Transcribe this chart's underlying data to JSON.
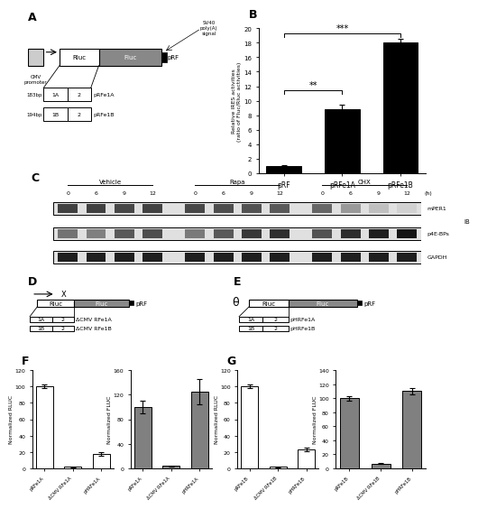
{
  "panel_B": {
    "categories": [
      "pRF",
      "pRFe1A",
      "pRFe1B"
    ],
    "values": [
      1.0,
      8.8,
      18.0
    ],
    "errors": [
      0.1,
      0.6,
      0.5
    ],
    "bar_color": "#000000",
    "ylabel": "Relative IRES activities\n(ratio of Fluc/Rluc activities)",
    "ylim": [
      0,
      20
    ],
    "yticks": [
      0,
      2,
      4,
      6,
      8,
      10,
      12,
      14,
      16,
      18,
      20
    ]
  },
  "panel_F_rluc": {
    "categories": [
      "pRFe1A",
      "ΔCMV RFe1A",
      "pHRFe1A"
    ],
    "values": [
      100,
      2,
      18
    ],
    "errors": [
      2,
      0.5,
      2
    ],
    "bar_colors": [
      "white",
      "white",
      "white"
    ],
    "ylabel": "Normalized RLUC",
    "ylim": [
      0,
      120
    ],
    "yticks": [
      0,
      20,
      40,
      60,
      80,
      100,
      120
    ]
  },
  "panel_F_fluc": {
    "categories": [
      "pRFe1A",
      "ΔCMV RFe1A",
      "pHRFe1A"
    ],
    "values": [
      100,
      4,
      125
    ],
    "errors": [
      10,
      1,
      20
    ],
    "bar_colors": [
      "#808080",
      "#808080",
      "#808080"
    ],
    "ylabel": "Normalized FLUC",
    "ylim": [
      0,
      160
    ],
    "yticks": [
      0,
      40,
      80,
      120,
      160
    ]
  },
  "panel_G_rluc": {
    "categories": [
      "pRFe1B",
      "ΔCMV RFe1B",
      "pHRFe1B"
    ],
    "values": [
      100,
      2,
      23
    ],
    "errors": [
      2,
      0.5,
      2
    ],
    "bar_colors": [
      "white",
      "white",
      "white"
    ],
    "ylabel": "Normalized RLUC",
    "ylim": [
      0,
      120
    ],
    "yticks": [
      0,
      20,
      40,
      60,
      80,
      100,
      120
    ]
  },
  "panel_G_fluc": {
    "categories": [
      "pRFe1B",
      "ΔCMV RFe1B",
      "pHRFe1B"
    ],
    "values": [
      100,
      7,
      110
    ],
    "errors": [
      3,
      1,
      5
    ],
    "bar_colors": [
      "#808080",
      "#808080",
      "#808080"
    ],
    "ylabel": "Normalized FLUC",
    "ylim": [
      0,
      140
    ],
    "yticks": [
      0,
      20,
      40,
      60,
      80,
      100,
      120,
      140
    ]
  },
  "background_color": "#ffffff"
}
